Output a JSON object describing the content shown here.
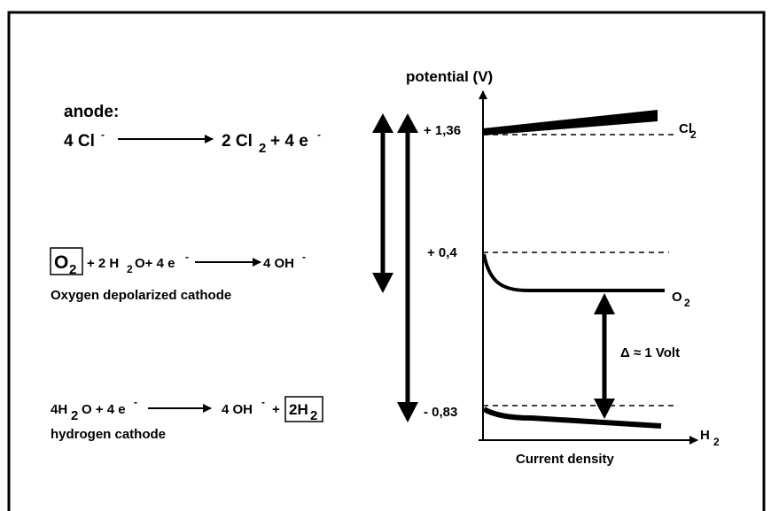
{
  "anode": {
    "label": "anode:",
    "equation": [
      "4 Cl",
      "-",
      "2 Cl",
      "2",
      "+ 4 e",
      "-"
    ]
  },
  "oxygen_cathode": {
    "equation": [
      "O",
      "2",
      "+ 2 H",
      "2",
      "O+ 4 e",
      "-",
      "4 OH",
      "-"
    ],
    "label": "Oxygen depolarized cathode"
  },
  "hydrogen_cathode": {
    "equation": [
      "4H",
      "2",
      "O + 4 e",
      "-",
      "4 OH",
      "-",
      "+",
      "2H",
      "2"
    ],
    "label": "hydrogen cathode"
  },
  "graph": {
    "y_axis_label": "potential (V)",
    "x_axis_label": "Current density",
    "levels": [
      "+ 1,36",
      "+ 0,4",
      "- 0,83"
    ],
    "curve_labels": {
      "cl2": [
        "Cl",
        "2"
      ],
      "o2": [
        "O",
        "2"
      ],
      "h2": [
        "H",
        "2"
      ]
    },
    "difference": "Δ ≈ 1 Volt"
  }
}
